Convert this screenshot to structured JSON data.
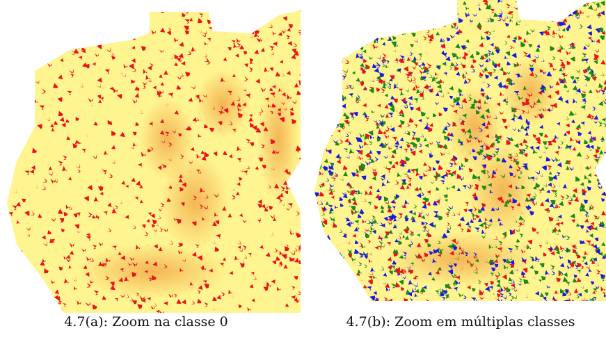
{
  "figure": {
    "subfigures": [
      {
        "caption": "4.7(a): Zoom na classe 0"
      },
      {
        "caption": "4.7(b): Zoom em múltiplas classes"
      }
    ]
  }
}
